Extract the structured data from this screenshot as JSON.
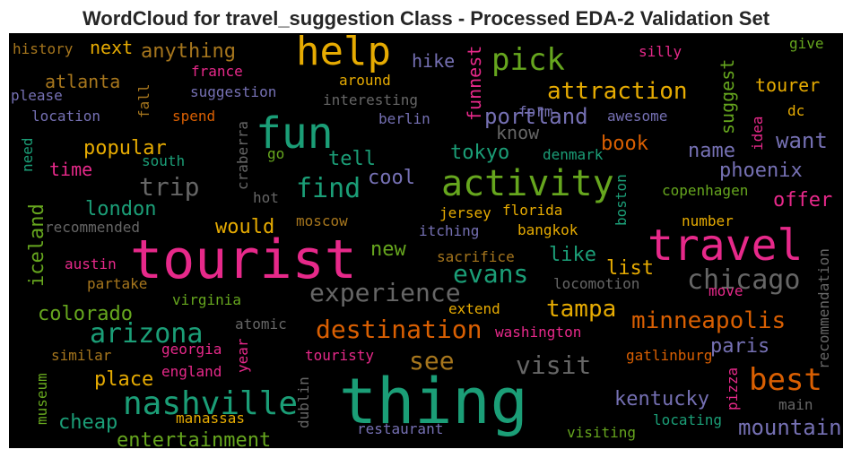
{
  "chart_data": {
    "type": "wordcloud",
    "title": "WordCloud for travel_suggestion Class - Processed EDA-2 Validation Set",
    "background": "#000000",
    "words": [
      {
        "text": "history",
        "color": "#a6761d"
      },
      {
        "text": "next",
        "color": "#e6ab02"
      },
      {
        "text": "anything",
        "color": "#a6761d"
      },
      {
        "text": "help",
        "color": "#e6ab02"
      },
      {
        "text": "funnest",
        "color": "#e7298a"
      },
      {
        "text": "pick",
        "color": "#66a61e"
      },
      {
        "text": "silly",
        "color": "#e7298a"
      },
      {
        "text": "give",
        "color": "#66a61e"
      },
      {
        "text": "atlanta",
        "color": "#a6761d"
      },
      {
        "text": "france",
        "color": "#e7298a"
      },
      {
        "text": "hike",
        "color": "#7570b3"
      },
      {
        "text": "please",
        "color": "#7570b3"
      },
      {
        "text": "suggestion",
        "color": "#7570b3"
      },
      {
        "text": "fall",
        "color": "#a6761d"
      },
      {
        "text": "around",
        "color": "#e6ab02"
      },
      {
        "text": "attraction",
        "color": "#e6ab02"
      },
      {
        "text": "suggest",
        "color": "#66a61e"
      },
      {
        "text": "tourer",
        "color": "#e6ab02"
      },
      {
        "text": "location",
        "color": "#7570b3"
      },
      {
        "text": "spend",
        "color": "#d95f02"
      },
      {
        "text": "interesting",
        "color": "#666666"
      },
      {
        "text": "fun",
        "color": "#1b9e77"
      },
      {
        "text": "portland",
        "color": "#7570b3"
      },
      {
        "text": "berlin",
        "color": "#7570b3"
      },
      {
        "text": "awesome",
        "color": "#7570b3"
      },
      {
        "text": "dc",
        "color": "#e6ab02"
      },
      {
        "text": "know",
        "color": "#666666"
      },
      {
        "text": "form",
        "color": "#7570b3"
      },
      {
        "text": "idea",
        "color": "#e7298a"
      },
      {
        "text": "craberra",
        "color": "#666666"
      },
      {
        "text": "need",
        "color": "#1b9e77"
      },
      {
        "text": "popular",
        "color": "#e6ab02"
      },
      {
        "text": "south",
        "color": "#1b9e77"
      },
      {
        "text": "time",
        "color": "#e7298a"
      },
      {
        "text": "book",
        "color": "#d95f02"
      },
      {
        "text": "want",
        "color": "#7570b3"
      },
      {
        "text": "name",
        "color": "#7570b3"
      },
      {
        "text": "tell",
        "color": "#1b9e77"
      },
      {
        "text": "tokyo",
        "color": "#1b9e77"
      },
      {
        "text": "denmark",
        "color": "#1b9e77"
      },
      {
        "text": "go",
        "color": "#66a61e"
      },
      {
        "text": "find",
        "color": "#1b9e77"
      },
      {
        "text": "activity",
        "color": "#66a61e"
      },
      {
        "text": "cool",
        "color": "#7570b3"
      },
      {
        "text": "trip",
        "color": "#666666"
      },
      {
        "text": "phoenix",
        "color": "#7570b3"
      },
      {
        "text": "boston",
        "color": "#1b9e77"
      },
      {
        "text": "copenhagen",
        "color": "#66a61e"
      },
      {
        "text": "offer",
        "color": "#e7298a"
      },
      {
        "text": "iceland",
        "color": "#66a61e"
      },
      {
        "text": "london",
        "color": "#1b9e77"
      },
      {
        "text": "hot",
        "color": "#666666"
      },
      {
        "text": "jersey",
        "color": "#e6ab02"
      },
      {
        "text": "florida",
        "color": "#e6ab02"
      },
      {
        "text": "recommended",
        "color": "#666666"
      },
      {
        "text": "would",
        "color": "#e6ab02"
      },
      {
        "text": "moscow",
        "color": "#a6761d"
      },
      {
        "text": "itching",
        "color": "#7570b3"
      },
      {
        "text": "bangkok",
        "color": "#e6ab02"
      },
      {
        "text": "number",
        "color": "#e6ab02"
      },
      {
        "text": "tourist",
        "color": "#e7298a"
      },
      {
        "text": "travel",
        "color": "#e7298a"
      },
      {
        "text": "new",
        "color": "#66a61e"
      },
      {
        "text": "austin",
        "color": "#e7298a"
      },
      {
        "text": "sacrifice",
        "color": "#a6761d"
      },
      {
        "text": "like",
        "color": "#1b9e77"
      },
      {
        "text": "recommendation",
        "color": "#666666"
      },
      {
        "text": "partake",
        "color": "#a6761d"
      },
      {
        "text": "evans",
        "color": "#1b9e77"
      },
      {
        "text": "list",
        "color": "#e6ab02"
      },
      {
        "text": "chicago",
        "color": "#666666"
      },
      {
        "text": "experience",
        "color": "#666666"
      },
      {
        "text": "locomotion",
        "color": "#666666"
      },
      {
        "text": "move",
        "color": "#e7298a"
      },
      {
        "text": "virginia",
        "color": "#66a61e"
      },
      {
        "text": "colorado",
        "color": "#66a61e"
      },
      {
        "text": "extend",
        "color": "#e6ab02"
      },
      {
        "text": "tampa",
        "color": "#e6ab02"
      },
      {
        "text": "arizona",
        "color": "#1b9e77"
      },
      {
        "text": "atomic",
        "color": "#666666"
      },
      {
        "text": "destination",
        "color": "#d95f02"
      },
      {
        "text": "minneapolis",
        "color": "#d95f02"
      },
      {
        "text": "washington",
        "color": "#e7298a"
      },
      {
        "text": "year",
        "color": "#e7298a"
      },
      {
        "text": "paris",
        "color": "#7570b3"
      },
      {
        "text": "similar",
        "color": "#a6761d"
      },
      {
        "text": "georgia",
        "color": "#e7298a"
      },
      {
        "text": "touristy",
        "color": "#e7298a"
      },
      {
        "text": "see",
        "color": "#a6761d"
      },
      {
        "text": "visit",
        "color": "#666666"
      },
      {
        "text": "gatlinburg",
        "color": "#d95f02"
      },
      {
        "text": "museum",
        "color": "#66a61e"
      },
      {
        "text": "place",
        "color": "#e6ab02"
      },
      {
        "text": "england",
        "color": "#e7298a"
      },
      {
        "text": "thing",
        "color": "#1b9e77"
      },
      {
        "text": "best",
        "color": "#d95f02"
      },
      {
        "text": "pizza",
        "color": "#e7298a"
      },
      {
        "text": "nashville",
        "color": "#1b9e77"
      },
      {
        "text": "kentucky",
        "color": "#7570b3"
      },
      {
        "text": "dublin",
        "color": "#666666"
      },
      {
        "text": "main",
        "color": "#666666"
      },
      {
        "text": "cheap",
        "color": "#1b9e77"
      },
      {
        "text": "manassas",
        "color": "#e6ab02"
      },
      {
        "text": "locating",
        "color": "#1b9e77"
      },
      {
        "text": "mountain",
        "color": "#7570b3"
      },
      {
        "text": "restaurant",
        "color": "#7570b3"
      },
      {
        "text": "entertainment",
        "color": "#66a61e"
      },
      {
        "text": "visiting",
        "color": "#66a61e"
      }
    ]
  }
}
